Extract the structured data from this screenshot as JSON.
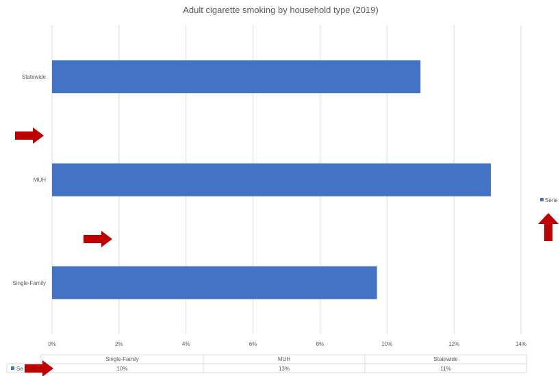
{
  "chart_data": {
    "type": "bar",
    "orientation": "horizontal",
    "title": "Adult cigarette smoking by household type (2019)",
    "categories": [
      "Single-Family",
      "MUH",
      "Statewide"
    ],
    "series": [
      {
        "name": "Serie",
        "values": [
          9.7,
          13.1,
          11.0
        ],
        "color": "#4472C4"
      }
    ],
    "xlim": [
      0,
      14
    ],
    "x_ticks": [
      "0%",
      "2%",
      "4%",
      "6%",
      "8%",
      "10%",
      "12%",
      "14%"
    ],
    "grid": true,
    "legend": "right",
    "data_table": {
      "headers": [
        "Single-Family",
        "MUH",
        "Statewide"
      ],
      "row_label": "Se",
      "values": [
        "10%",
        "13%",
        "11%"
      ]
    }
  },
  "annotations": {
    "arrow_color": "#C00000",
    "count": 4
  }
}
